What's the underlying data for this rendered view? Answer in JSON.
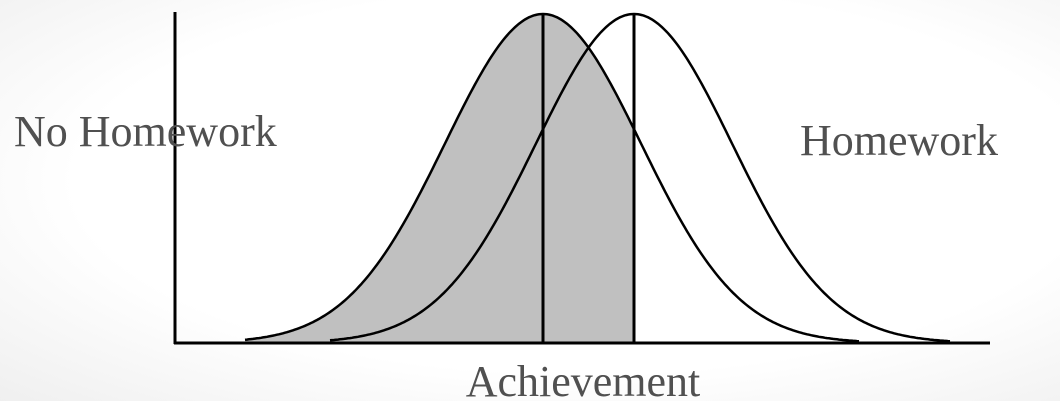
{
  "labels": {
    "left": "No Homework",
    "right": "Homework",
    "axis": "Achievement"
  }
}
